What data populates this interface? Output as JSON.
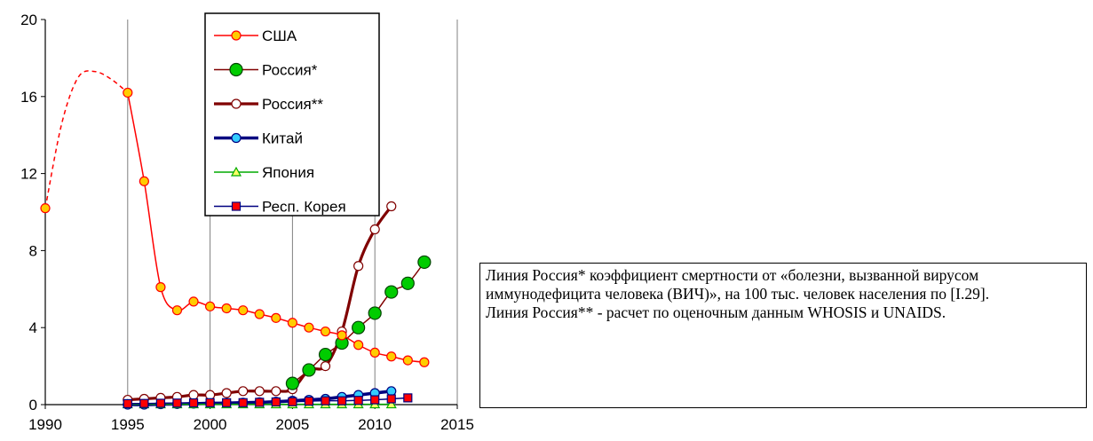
{
  "chart_data": {
    "type": "line",
    "x_ticks": [
      1990,
      1995,
      2000,
      2005,
      2010,
      2015
    ],
    "y_ticks": [
      0,
      4,
      8,
      12,
      16,
      20
    ],
    "xlim": [
      1990,
      2015
    ],
    "ylim": [
      0,
      20
    ],
    "grid": "vertical",
    "legend_position": "top-center",
    "series": [
      {
        "name": "США",
        "color": "#ff0000",
        "marker": "circle",
        "marker_fill": "#ffcc00",
        "marker_stroke": "#ff0000",
        "x": [
          1990,
          1995,
          1996,
          1997,
          1998,
          1999,
          2000,
          2001,
          2002,
          2003,
          2004,
          2005,
          2006,
          2007,
          2008,
          2009,
          2010,
          2011,
          2012,
          2013
        ],
        "y": [
          10.2,
          16.2,
          11.6,
          6.1,
          4.9,
          5.35,
          5.1,
          5.0,
          4.9,
          4.7,
          4.5,
          4.25,
          4.0,
          3.8,
          3.6,
          3.1,
          2.7,
          2.5,
          2.3,
          2.2
        ],
        "dashed_segment": {
          "x": [
            1990,
            1991,
            1992,
            1993,
            1994,
            1995
          ],
          "y": [
            10.2,
            14.6,
            17.0,
            17.3,
            16.9,
            16.2
          ]
        }
      },
      {
        "name": "Россия*",
        "color": "#800000",
        "marker": "circle",
        "marker_fill": "#00cc00",
        "marker_stroke": "#004400",
        "x": [
          2005,
          2006,
          2007,
          2008,
          2009,
          2010,
          2011,
          2012,
          2013
        ],
        "y": [
          1.1,
          1.8,
          2.6,
          3.2,
          4.0,
          4.75,
          5.85,
          6.3,
          7.4
        ]
      },
      {
        "name": "Россия**",
        "color": "#800000",
        "marker": "circle",
        "marker_fill": "#ffffff",
        "marker_stroke": "#800000",
        "x": [
          1995,
          1996,
          1997,
          1998,
          1999,
          2000,
          2001,
          2002,
          2003,
          2004,
          2005,
          2006,
          2007,
          2008,
          2009,
          2010,
          2011
        ],
        "y": [
          0.25,
          0.3,
          0.35,
          0.4,
          0.5,
          0.5,
          0.6,
          0.7,
          0.7,
          0.7,
          0.8,
          1.8,
          2.0,
          3.8,
          7.2,
          9.1,
          10.3
        ]
      },
      {
        "name": "Китай",
        "color": "#000080",
        "marker": "circle",
        "marker_fill": "#33ccff",
        "marker_stroke": "#000080",
        "x": [
          1995,
          1996,
          1997,
          1998,
          1999,
          2000,
          2001,
          2002,
          2003,
          2004,
          2005,
          2006,
          2007,
          2008,
          2009,
          2010,
          2011
        ],
        "y": [
          0.0,
          0.0,
          0.02,
          0.03,
          0.05,
          0.07,
          0.08,
          0.1,
          0.12,
          0.15,
          0.2,
          0.25,
          0.3,
          0.4,
          0.5,
          0.6,
          0.7
        ]
      },
      {
        "name": "Япония",
        "color": "#00aa00",
        "marker": "triangle",
        "marker_fill": "#ffff66",
        "marker_stroke": "#00aa00",
        "x": [
          1995,
          1996,
          1997,
          1998,
          1999,
          2000,
          2001,
          2002,
          2003,
          2004,
          2005,
          2006,
          2007,
          2008,
          2009,
          2010,
          2011
        ],
        "y": [
          0.02,
          0.02,
          0.02,
          0.02,
          0.02,
          0.02,
          0.02,
          0.02,
          0.02,
          0.02,
          0.02,
          0.02,
          0.02,
          0.02,
          0.02,
          0.02,
          0.02
        ]
      },
      {
        "name": "Респ. Корея",
        "color": "#000080",
        "marker": "square",
        "marker_fill": "#ff0000",
        "marker_stroke": "#000080",
        "x": [
          1995,
          1996,
          1997,
          1998,
          1999,
          2000,
          2001,
          2002,
          2003,
          2004,
          2005,
          2006,
          2007,
          2008,
          2009,
          2010,
          2011,
          2012
        ],
        "y": [
          0.05,
          0.06,
          0.07,
          0.08,
          0.09,
          0.1,
          0.1,
          0.1,
          0.12,
          0.14,
          0.15,
          0.18,
          0.2,
          0.2,
          0.22,
          0.25,
          0.3,
          0.35
        ]
      }
    ]
  },
  "note": {
    "line1": "Линия Россия* коэффициент смертности от «болезни,  вызванной вирусом иммунодефицита человека (ВИЧ)», на 100 тыс. человек населения по [I.29].",
    "line2": "Линия Россия** - расчет по оценочным данным WHOSIS  и UNAIDS."
  }
}
